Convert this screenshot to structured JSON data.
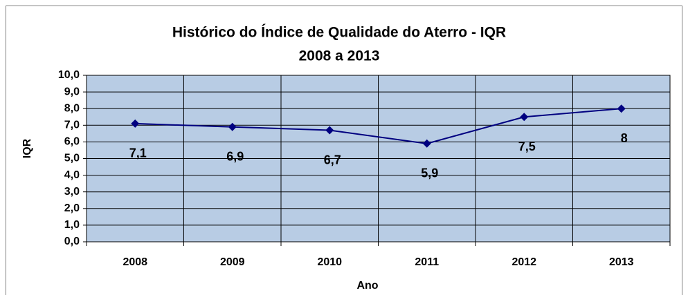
{
  "chart_data": {
    "type": "line",
    "title": "Histórico do Índice de Qualidade do Aterro - IQR",
    "subtitle": "2008 a 2013",
    "x_label": "Ano",
    "y_label": "IQR",
    "categories": [
      "2008",
      "2009",
      "2010",
      "2011",
      "2012",
      "2013"
    ],
    "series": [
      {
        "name": "IQR",
        "color": "#000080",
        "values": [
          7.1,
          6.9,
          6.7,
          5.9,
          7.5,
          8
        ],
        "value_labels": [
          "7,1",
          "6,9",
          "6,7",
          "5,9",
          "7,5",
          "8"
        ]
      }
    ],
    "ylim": [
      0,
      10
    ],
    "yticks": [
      {
        "value": 0,
        "label": "0,0"
      },
      {
        "value": 1,
        "label": "1,0"
      },
      {
        "value": 2,
        "label": "2,0"
      },
      {
        "value": 3,
        "label": "3,0"
      },
      {
        "value": 4,
        "label": "4,0"
      },
      {
        "value": 5,
        "label": "5,0"
      },
      {
        "value": 6,
        "label": "6,0"
      },
      {
        "value": 7,
        "label": "7,0"
      },
      {
        "value": 8,
        "label": "8,0"
      },
      {
        "value": 9,
        "label": "9,0"
      },
      {
        "value": 10,
        "label": "10,0"
      }
    ],
    "grid": true,
    "plot_background": "#b8cce4"
  }
}
